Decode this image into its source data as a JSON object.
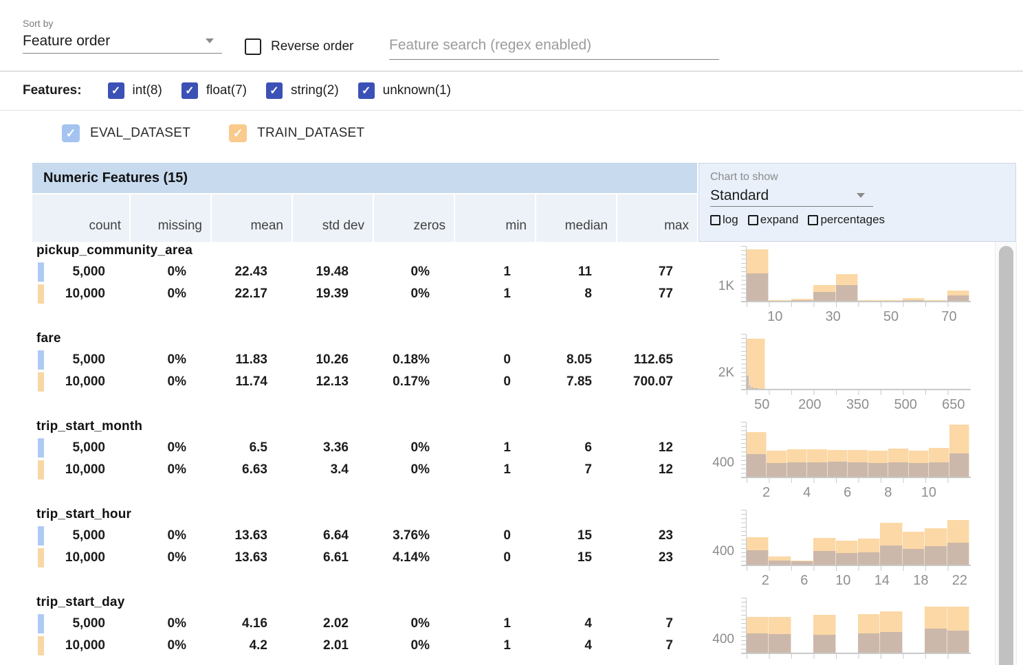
{
  "toolbar": {
    "sort_by_label": "Sort by",
    "sort_value": "Feature order",
    "reverse_label": "Reverse order",
    "search_placeholder": "Feature search (regex enabled)"
  },
  "filters": {
    "caption": "Features:",
    "types": [
      {
        "label": "int(8)",
        "checked": true
      },
      {
        "label": "float(7)",
        "checked": true
      },
      {
        "label": "string(2)",
        "checked": true
      },
      {
        "label": "unknown(1)",
        "checked": true
      }
    ]
  },
  "datasets": [
    {
      "name": "EVAL_DATASET",
      "checked": true,
      "checkbox_color": "#a4c3f1",
      "swatch_color": "#aecaf2"
    },
    {
      "name": "TRAIN_DATASET",
      "checked": true,
      "checkbox_color": "#f9ca8c",
      "swatch_color": "#f7d7a4"
    }
  ],
  "chart_controls": {
    "caption": "Chart to show",
    "selected": "Standard",
    "options": [
      {
        "label": "log",
        "checked": false
      },
      {
        "label": "expand",
        "checked": false
      },
      {
        "label": "percentages",
        "checked": false
      }
    ]
  },
  "table": {
    "title": "Numeric Features (15)",
    "columns": [
      "count",
      "missing",
      "mean",
      "std dev",
      "zeros",
      "min",
      "median",
      "max"
    ],
    "features": [
      {
        "name": "pickup_community_area",
        "rows": [
          {
            "dataset": "EVAL_DATASET",
            "values": [
              "5,000",
              "0%",
              "22.43",
              "19.48",
              "0%",
              "1",
              "11",
              "77"
            ]
          },
          {
            "dataset": "TRAIN_DATASET",
            "values": [
              "10,000",
              "0%",
              "22.17",
              "19.39",
              "0%",
              "1",
              "8",
              "77"
            ]
          }
        ]
      },
      {
        "name": "fare",
        "rows": [
          {
            "dataset": "EVAL_DATASET",
            "values": [
              "5,000",
              "0%",
              "11.83",
              "10.26",
              "0.18%",
              "0",
              "8.05",
              "112.65"
            ]
          },
          {
            "dataset": "TRAIN_DATASET",
            "values": [
              "10,000",
              "0%",
              "11.74",
              "12.13",
              "0.17%",
              "0",
              "7.85",
              "700.07"
            ]
          }
        ]
      },
      {
        "name": "trip_start_month",
        "rows": [
          {
            "dataset": "EVAL_DATASET",
            "values": [
              "5,000",
              "0%",
              "6.5",
              "3.36",
              "0%",
              "1",
              "6",
              "12"
            ]
          },
          {
            "dataset": "TRAIN_DATASET",
            "values": [
              "10,000",
              "0%",
              "6.63",
              "3.4",
              "0%",
              "1",
              "7",
              "12"
            ]
          }
        ]
      },
      {
        "name": "trip_start_hour",
        "rows": [
          {
            "dataset": "EVAL_DATASET",
            "values": [
              "5,000",
              "0%",
              "13.63",
              "6.64",
              "3.76%",
              "0",
              "15",
              "23"
            ]
          },
          {
            "dataset": "TRAIN_DATASET",
            "values": [
              "10,000",
              "0%",
              "13.63",
              "6.61",
              "4.14%",
              "0",
              "15",
              "23"
            ]
          }
        ]
      },
      {
        "name": "trip_start_day",
        "rows": [
          {
            "dataset": "EVAL_DATASET",
            "values": [
              "5,000",
              "0%",
              "4.16",
              "2.02",
              "0%",
              "1",
              "4",
              "7"
            ]
          },
          {
            "dataset": "TRAIN_DATASET",
            "values": [
              "10,000",
              "0%",
              "4.2",
              "2.01",
              "0%",
              "1",
              "4",
              "7"
            ]
          }
        ]
      }
    ]
  },
  "chart_data": [
    {
      "type": "bar",
      "feature": "pickup_community_area",
      "ylabel": "1K",
      "ylabel_value": 1000,
      "ymax": 4000,
      "xmin": 0,
      "xmax": 77,
      "xticks": [
        10,
        30,
        50,
        70
      ],
      "legend": [
        "TRAIN_DATASET",
        "EVAL_DATASET"
      ],
      "bars": [
        {
          "x": 0,
          "w": 7.7,
          "train": 3750,
          "eval": 2000
        },
        {
          "x": 7.7,
          "w": 7.7,
          "train": 50,
          "eval": 25
        },
        {
          "x": 15.4,
          "w": 7.7,
          "train": 150,
          "eval": 75
        },
        {
          "x": 23.1,
          "w": 7.7,
          "train": 1150,
          "eval": 650
        },
        {
          "x": 30.8,
          "w": 7.7,
          "train": 1950,
          "eval": 1150
        },
        {
          "x": 38.5,
          "w": 7.7,
          "train": 40,
          "eval": 20
        },
        {
          "x": 46.2,
          "w": 7.7,
          "train": 40,
          "eval": 20
        },
        {
          "x": 53.9,
          "w": 7.7,
          "train": 180,
          "eval": 70
        },
        {
          "x": 61.6,
          "w": 7.7,
          "train": 30,
          "eval": 15
        },
        {
          "x": 69.3,
          "w": 7.7,
          "train": 750,
          "eval": 400
        }
      ]
    },
    {
      "type": "bar",
      "feature": "fare",
      "ylabel": "2K",
      "ylabel_value": 2000,
      "ymax": 7400,
      "xmin": 0,
      "xmax": 700,
      "xticks": [
        50,
        200,
        350,
        500,
        650
      ],
      "legend": [
        "TRAIN_DATASET",
        "EVAL_DATASET"
      ],
      "bars": [
        {
          "x": 0,
          "w": 58,
          "train": 6800,
          "eval": 0
        },
        {
          "x": 0,
          "w": 8,
          "train": 0,
          "eval": 1800
        },
        {
          "x": 8,
          "w": 8,
          "train": 0,
          "eval": 500
        },
        {
          "x": 16,
          "w": 8,
          "train": 0,
          "eval": 150
        },
        {
          "x": 24,
          "w": 12,
          "train": 0,
          "eval": 60
        }
      ]
    },
    {
      "type": "bar",
      "feature": "trip_start_month",
      "ylabel": "400",
      "ylabel_value": 400,
      "ymax": 1650,
      "xmin": 1,
      "xmax": 12,
      "xticks": [
        2,
        4,
        6,
        8,
        10
      ],
      "legend": [
        "TRAIN_DATASET",
        "EVAL_DATASET"
      ],
      "bars": [
        {
          "x": 1,
          "w": 1,
          "train": 1350,
          "eval": 690
        },
        {
          "x": 2,
          "w": 1,
          "train": 790,
          "eval": 420
        },
        {
          "x": 3,
          "w": 1,
          "train": 820,
          "eval": 430
        },
        {
          "x": 4,
          "w": 1,
          "train": 830,
          "eval": 440
        },
        {
          "x": 5,
          "w": 1,
          "train": 810,
          "eval": 450
        },
        {
          "x": 6,
          "w": 1,
          "train": 800,
          "eval": 440
        },
        {
          "x": 7,
          "w": 1,
          "train": 790,
          "eval": 420
        },
        {
          "x": 8,
          "w": 1,
          "train": 850,
          "eval": 430
        },
        {
          "x": 9,
          "w": 1,
          "train": 780,
          "eval": 420
        },
        {
          "x": 10,
          "w": 1,
          "train": 860,
          "eval": 430
        },
        {
          "x": 11,
          "w": 1,
          "train": 1575,
          "eval": 710
        }
      ]
    },
    {
      "type": "bar",
      "feature": "trip_start_hour",
      "ylabel": "400",
      "ylabel_value": 400,
      "ymax": 1780,
      "xmin": 0,
      "xmax": 23,
      "xticks": [
        2,
        6,
        10,
        14,
        18,
        22
      ],
      "legend": [
        "TRAIN_DATASET",
        "EVAL_DATASET"
      ],
      "bars": [
        {
          "x": 0,
          "w": 2.3,
          "train": 900,
          "eval": 470
        },
        {
          "x": 2.3,
          "w": 2.3,
          "train": 270,
          "eval": 130
        },
        {
          "x": 4.6,
          "w": 2.3,
          "train": 130,
          "eval": 110
        },
        {
          "x": 6.9,
          "w": 2.3,
          "train": 870,
          "eval": 440
        },
        {
          "x": 9.2,
          "w": 2.3,
          "train": 780,
          "eval": 380
        },
        {
          "x": 11.5,
          "w": 2.3,
          "train": 840,
          "eval": 400
        },
        {
          "x": 13.8,
          "w": 2.3,
          "train": 1360,
          "eval": 620
        },
        {
          "x": 16.1,
          "w": 2.3,
          "train": 1070,
          "eval": 510
        },
        {
          "x": 18.4,
          "w": 2.3,
          "train": 1180,
          "eval": 600
        },
        {
          "x": 20.7,
          "w": 2.3,
          "train": 1440,
          "eval": 710
        }
      ]
    },
    {
      "type": "bar",
      "feature": "trip_start_day",
      "ylabel": "400",
      "ylabel_value": 400,
      "ymax": 1780,
      "xmin": 1,
      "xmax": 7,
      "xticks": [],
      "legend": [
        "TRAIN_DATASET",
        "EVAL_DATASET"
      ],
      "bars": [
        {
          "x": 1.0,
          "w": 0.6,
          "train": 1150,
          "eval": 620
        },
        {
          "x": 1.6,
          "w": 0.6,
          "train": 1150,
          "eval": 600
        },
        {
          "x": 2.8,
          "w": 0.6,
          "train": 1220,
          "eval": 580
        },
        {
          "x": 4.0,
          "w": 0.6,
          "train": 1240,
          "eval": 620
        },
        {
          "x": 4.6,
          "w": 0.6,
          "train": 1330,
          "eval": 670
        },
        {
          "x": 5.8,
          "w": 0.6,
          "train": 1490,
          "eval": 780
        },
        {
          "x": 6.4,
          "w": 0.6,
          "train": 1490,
          "eval": 710
        }
      ]
    }
  ],
  "colors": {
    "accent_indigo": "#3c51b5",
    "band_blue": "#c7daee",
    "column_header_blue": "#edf2f8",
    "panel_blue": "#e9f0fa",
    "train_bar": "#fbd8a5",
    "overlap_bar": "#ccb8aa",
    "eval_swatch": "#aecaf2",
    "train_swatch": "#f7d7a4"
  },
  "icons": {
    "check": "✓"
  }
}
